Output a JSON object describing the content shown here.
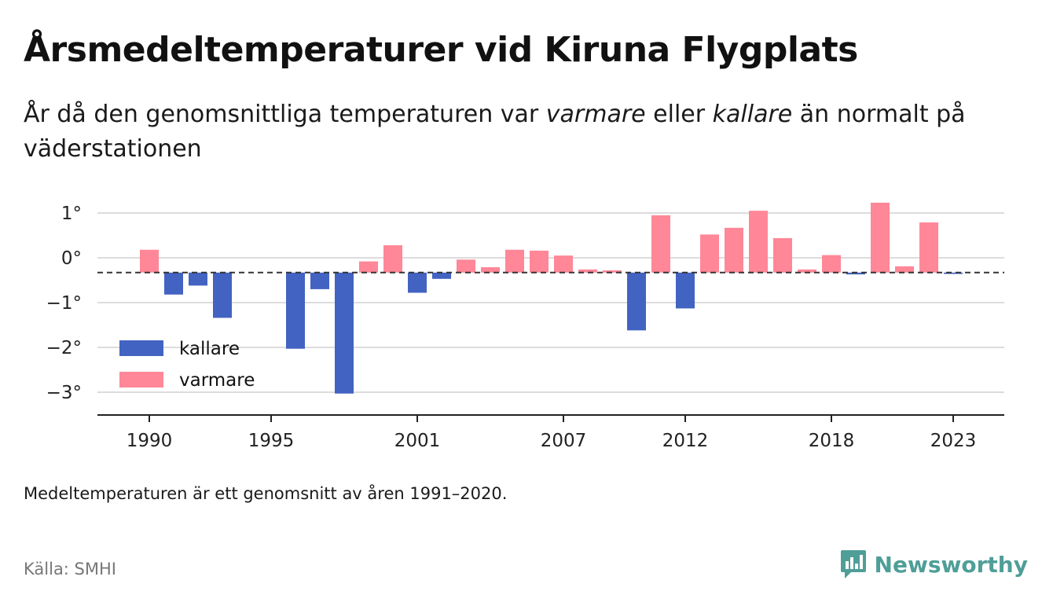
{
  "title": "Årsmedeltemperaturer vid Kiruna Flygplats",
  "subtitle": {
    "part1": "År då den genomsnittliga temperaturen var ",
    "warm_word": "varmare",
    "part2": " eller ",
    "cold_word": "kallare",
    "part3": " än normalt på väderstationen"
  },
  "note": "Medeltemperaturen är ett genomsnitt av åren 1991–2020.",
  "source": "Källa: SMHI",
  "brand": {
    "name": "Newsworthy",
    "icon": "newsworthy-logo-icon",
    "color": "#4f9e98"
  },
  "chart_data": {
    "type": "bar",
    "baseline": -0.33,
    "baseline_style": "dashed",
    "ylim": [
      -3.5,
      1.25
    ],
    "yticks": [
      1,
      0,
      -1,
      -2,
      -3
    ],
    "ytick_labels": [
      "1°",
      "0°",
      "−1°",
      "−2°",
      "−3°"
    ],
    "xticks": [
      1990,
      1995,
      2001,
      2007,
      2012,
      2018,
      2023
    ],
    "xtick_labels": [
      "1990",
      "1995",
      "2001",
      "2007",
      "2012",
      "2018",
      "2023"
    ],
    "grid": true,
    "legend_placement": "bottom-left",
    "colors": {
      "kallare": "#4263c1",
      "varmare": "#ff8797"
    },
    "series": [
      {
        "name": "kallare",
        "color": "#4263c1"
      },
      {
        "name": "varmare",
        "color": "#ff8797"
      }
    ],
    "x": [
      1990,
      1991,
      1992,
      1993,
      1994,
      1995,
      1996,
      1997,
      1998,
      1999,
      2000,
      2001,
      2002,
      2003,
      2004,
      2005,
      2006,
      2007,
      2008,
      2009,
      2010,
      2011,
      2012,
      2013,
      2014,
      2015,
      2016,
      2017,
      2018,
      2019,
      2020,
      2021,
      2022,
      2023
    ],
    "values": [
      0.18,
      -0.82,
      -0.62,
      -1.34,
      null,
      null,
      -2.03,
      -0.7,
      -3.03,
      -0.08,
      0.28,
      -0.78,
      -0.47,
      -0.04,
      -0.21,
      0.18,
      0.16,
      0.05,
      -0.26,
      -0.28,
      -1.62,
      0.95,
      -1.13,
      0.52,
      0.67,
      1.05,
      0.44,
      -0.26,
      0.06,
      -0.37,
      1.23,
      -0.19,
      0.79,
      -0.36
    ]
  }
}
